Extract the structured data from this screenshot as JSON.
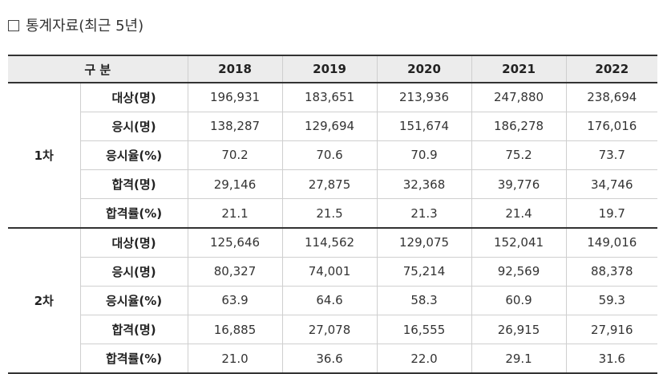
{
  "title": {
    "text": "통계자료(최근 5년)"
  },
  "table": {
    "header": {
      "category_label": "구 분",
      "years": [
        "2018",
        "2019",
        "2020",
        "2021",
        "2022"
      ]
    },
    "groups": [
      {
        "label": "1차",
        "rows": [
          {
            "label": "대상(명)",
            "values": [
              "196,931",
              "183,651",
              "213,936",
              "247,880",
              "238,694"
            ]
          },
          {
            "label": "응시(명)",
            "values": [
              "138,287",
              "129,694",
              "151,674",
              "186,278",
              "176,016"
            ]
          },
          {
            "label": "응시율(%)",
            "values": [
              "70.2",
              "70.6",
              "70.9",
              "75.2",
              "73.7"
            ]
          },
          {
            "label": "합격(명)",
            "values": [
              "29,146",
              "27,875",
              "32,368",
              "39,776",
              "34,746"
            ]
          },
          {
            "label": "합격률(%)",
            "values": [
              "21.1",
              "21.5",
              "21.3",
              "21.4",
              "19.7"
            ]
          }
        ]
      },
      {
        "label": "2차",
        "rows": [
          {
            "label": "대상(명)",
            "values": [
              "125,646",
              "114,562",
              "129,075",
              "152,041",
              "149,016"
            ]
          },
          {
            "label": "응시(명)",
            "values": [
              "80,327",
              "74,001",
              "75,214",
              "92,569",
              "88,378"
            ]
          },
          {
            "label": "응시율(%)",
            "values": [
              "63.9",
              "64.6",
              "58.3",
              "60.9",
              "59.3"
            ]
          },
          {
            "label": "합격(명)",
            "values": [
              "16,885",
              "27,078",
              "16,555",
              "26,915",
              "27,916"
            ]
          },
          {
            "label": "합격률(%)",
            "values": [
              "21.0",
              "36.6",
              "22.0",
              "29.1",
              "31.6"
            ]
          }
        ]
      }
    ]
  }
}
